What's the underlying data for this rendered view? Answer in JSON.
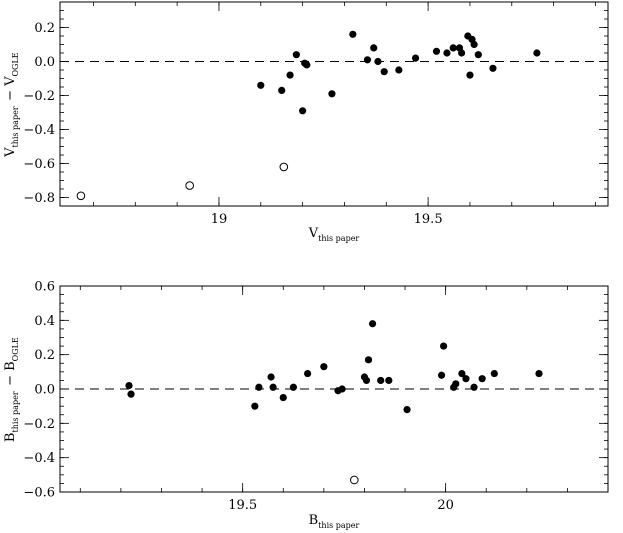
{
  "chart_data": [
    {
      "type": "scatter",
      "xlabel": "V",
      "xlabel_sub": "this paper",
      "ylabel_parts": [
        {
          "text": "V",
          "sub": "this paper"
        },
        {
          "text": " − "
        },
        {
          "text": "V",
          "sub": "OGLE"
        }
      ],
      "xlim": [
        18.62,
        19.93
      ],
      "ylim": [
        -0.85,
        0.35
      ],
      "x_major_ticks": [
        19,
        19.5
      ],
      "x_tick_labels": [
        "19",
        "19.5"
      ],
      "x_minor_step": 0.1,
      "y_major_ticks": [
        -0.8,
        -0.6,
        -0.4,
        -0.2,
        0.0,
        0.2
      ],
      "y_tick_labels": [
        "−0.8",
        "−0.6",
        "−0.4",
        "−0.2",
        "0.0",
        "0.2"
      ],
      "y_minor_step": 0.05,
      "zero_line": "dashed",
      "series": [
        {
          "marker": "filled-circle",
          "x": [
            19.1,
            19.15,
            19.17,
            19.185,
            19.2,
            19.205,
            19.21,
            19.27,
            19.32,
            19.355,
            19.37,
            19.38,
            19.395,
            19.43,
            19.47,
            19.52,
            19.545,
            19.56,
            19.575,
            19.58,
            19.595,
            19.6,
            19.605,
            19.61,
            19.62,
            19.655,
            19.76
          ],
          "y": [
            -0.14,
            -0.17,
            -0.08,
            0.04,
            -0.29,
            -0.01,
            -0.02,
            -0.19,
            0.16,
            0.01,
            0.08,
            0.0,
            -0.06,
            -0.05,
            0.02,
            0.06,
            0.05,
            0.08,
            0.08,
            0.05,
            0.15,
            -0.08,
            0.13,
            0.1,
            0.04,
            -0.04,
            0.05
          ]
        },
        {
          "marker": "open-circle",
          "x": [
            18.67,
            18.93,
            19.155
          ],
          "y": [
            -0.79,
            -0.73,
            -0.62
          ]
        }
      ]
    },
    {
      "type": "scatter",
      "xlabel": "B",
      "xlabel_sub": "this paper",
      "ylabel_parts": [
        {
          "text": "B",
          "sub": "this paper"
        },
        {
          "text": " − "
        },
        {
          "text": "B",
          "sub": "OGLE"
        }
      ],
      "xlim": [
        19.05,
        20.4
      ],
      "ylim": [
        -0.6,
        0.6
      ],
      "x_major_ticks": [
        19.5,
        20
      ],
      "x_tick_labels": [
        "19.5",
        "20"
      ],
      "x_minor_step": 0.1,
      "y_major_ticks": [
        -0.6,
        -0.4,
        -0.2,
        0.0,
        0.2,
        0.4,
        0.6
      ],
      "y_tick_labels": [
        "−0.6",
        "−0.4",
        "−0.2",
        "0.0",
        "0.2",
        "0.4",
        "0.6"
      ],
      "y_minor_step": 0.05,
      "zero_line": "dashed",
      "series": [
        {
          "marker": "filled-circle",
          "x": [
            19.22,
            19.225,
            19.53,
            19.54,
            19.57,
            19.575,
            19.6,
            19.625,
            19.66,
            19.7,
            19.735,
            19.745,
            19.8,
            19.805,
            19.81,
            19.82,
            19.84,
            19.86,
            19.905,
            19.99,
            19.995,
            20.02,
            20.025,
            20.04,
            20.05,
            20.07,
            20.09,
            20.12,
            20.23
          ],
          "y": [
            0.02,
            -0.03,
            -0.1,
            0.01,
            0.07,
            0.01,
            -0.05,
            0.01,
            0.09,
            0.13,
            -0.01,
            0.0,
            0.07,
            0.05,
            0.17,
            0.38,
            0.05,
            0.05,
            -0.12,
            0.08,
            0.25,
            0.01,
            0.03,
            0.09,
            0.06,
            0.01,
            0.06,
            0.09,
            0.09
          ]
        },
        {
          "marker": "open-circle",
          "x": [
            19.775
          ],
          "y": [
            -0.53
          ]
        }
      ]
    }
  ]
}
